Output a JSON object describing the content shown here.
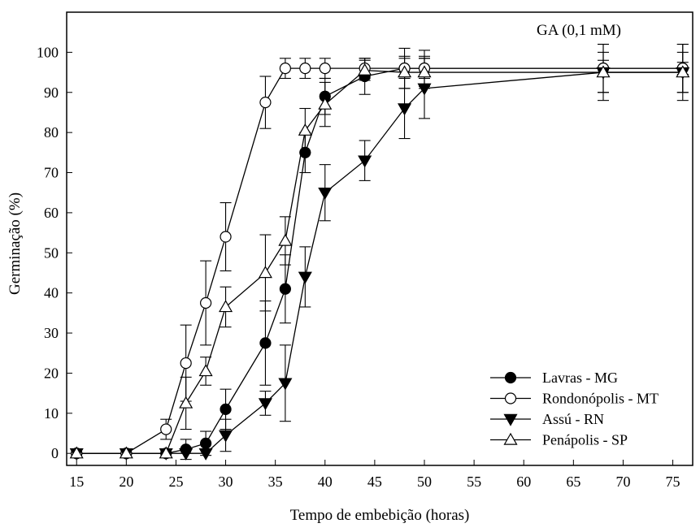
{
  "chart_data": {
    "type": "line",
    "annotation": "GA (0,1 mM)",
    "xlabel": "Tempo de embebição (horas)",
    "ylabel": "Germinação (%)",
    "xlim": [
      14,
      77
    ],
    "ylim": [
      -3,
      110
    ],
    "xticks": [
      15,
      20,
      25,
      30,
      35,
      40,
      45,
      50,
      55,
      60,
      65,
      70,
      75
    ],
    "yticks": [
      0,
      10,
      20,
      30,
      40,
      50,
      60,
      70,
      80,
      90,
      100
    ],
    "legend_position": "bottom-right",
    "series": [
      {
        "name": "Lavras - MG",
        "marker": "filled-circle",
        "x": [
          15,
          20,
          24,
          26,
          28,
          30,
          34,
          36,
          38,
          40,
          44,
          48,
          50,
          68,
          76
        ],
        "y": [
          0,
          0,
          0,
          1,
          2.5,
          11,
          27.5,
          41,
          75,
          89,
          94,
          96,
          96,
          96,
          96
        ],
        "err": [
          0,
          0,
          0,
          2.5,
          3,
          5,
          10.5,
          8.5,
          5,
          4.5,
          4.5,
          5,
          4.5,
          2,
          1.5
        ]
      },
      {
        "name": "Rondonópolis - MT",
        "marker": "open-circle",
        "x": [
          15,
          20,
          24,
          26,
          28,
          30,
          34,
          36,
          38,
          40,
          44,
          48,
          50,
          68,
          76
        ],
        "y": [
          0,
          0,
          6,
          22.5,
          37.5,
          54,
          87.5,
          96,
          96,
          96,
          96,
          96,
          96,
          96,
          96
        ],
        "err": [
          0,
          0,
          2.5,
          9.5,
          10.5,
          8.5,
          6.5,
          2.5,
          2.5,
          2.5,
          2.5,
          2.5,
          2.5,
          6,
          6
        ]
      },
      {
        "name": "Assú - RN",
        "marker": "filled-triangle-down",
        "x": [
          15,
          20,
          24,
          26,
          28,
          30,
          34,
          36,
          38,
          40,
          44,
          48,
          50,
          68,
          76
        ],
        "y": [
          0,
          0,
          0,
          0,
          0,
          4.5,
          12.5,
          17.5,
          44,
          65,
          73,
          86,
          91,
          95,
          95
        ],
        "err": [
          0,
          0,
          0,
          0,
          0,
          4,
          3,
          9.5,
          7.5,
          7,
          5,
          7.5,
          7.5,
          7,
          7
        ]
      },
      {
        "name": "Penápolis - SP",
        "marker": "open-triangle-up",
        "x": [
          15,
          20,
          24,
          26,
          28,
          30,
          34,
          36,
          38,
          40,
          44,
          48,
          50,
          68,
          76
        ],
        "y": [
          0,
          0,
          0,
          12.5,
          20.5,
          36.5,
          45,
          53,
          80.5,
          87,
          95.5,
          95,
          95,
          95,
          95
        ],
        "err": [
          0,
          0,
          0,
          6.5,
          3.5,
          5,
          9.5,
          6,
          5.5,
          5.5,
          2.5,
          4,
          4,
          5,
          5
        ]
      }
    ]
  }
}
